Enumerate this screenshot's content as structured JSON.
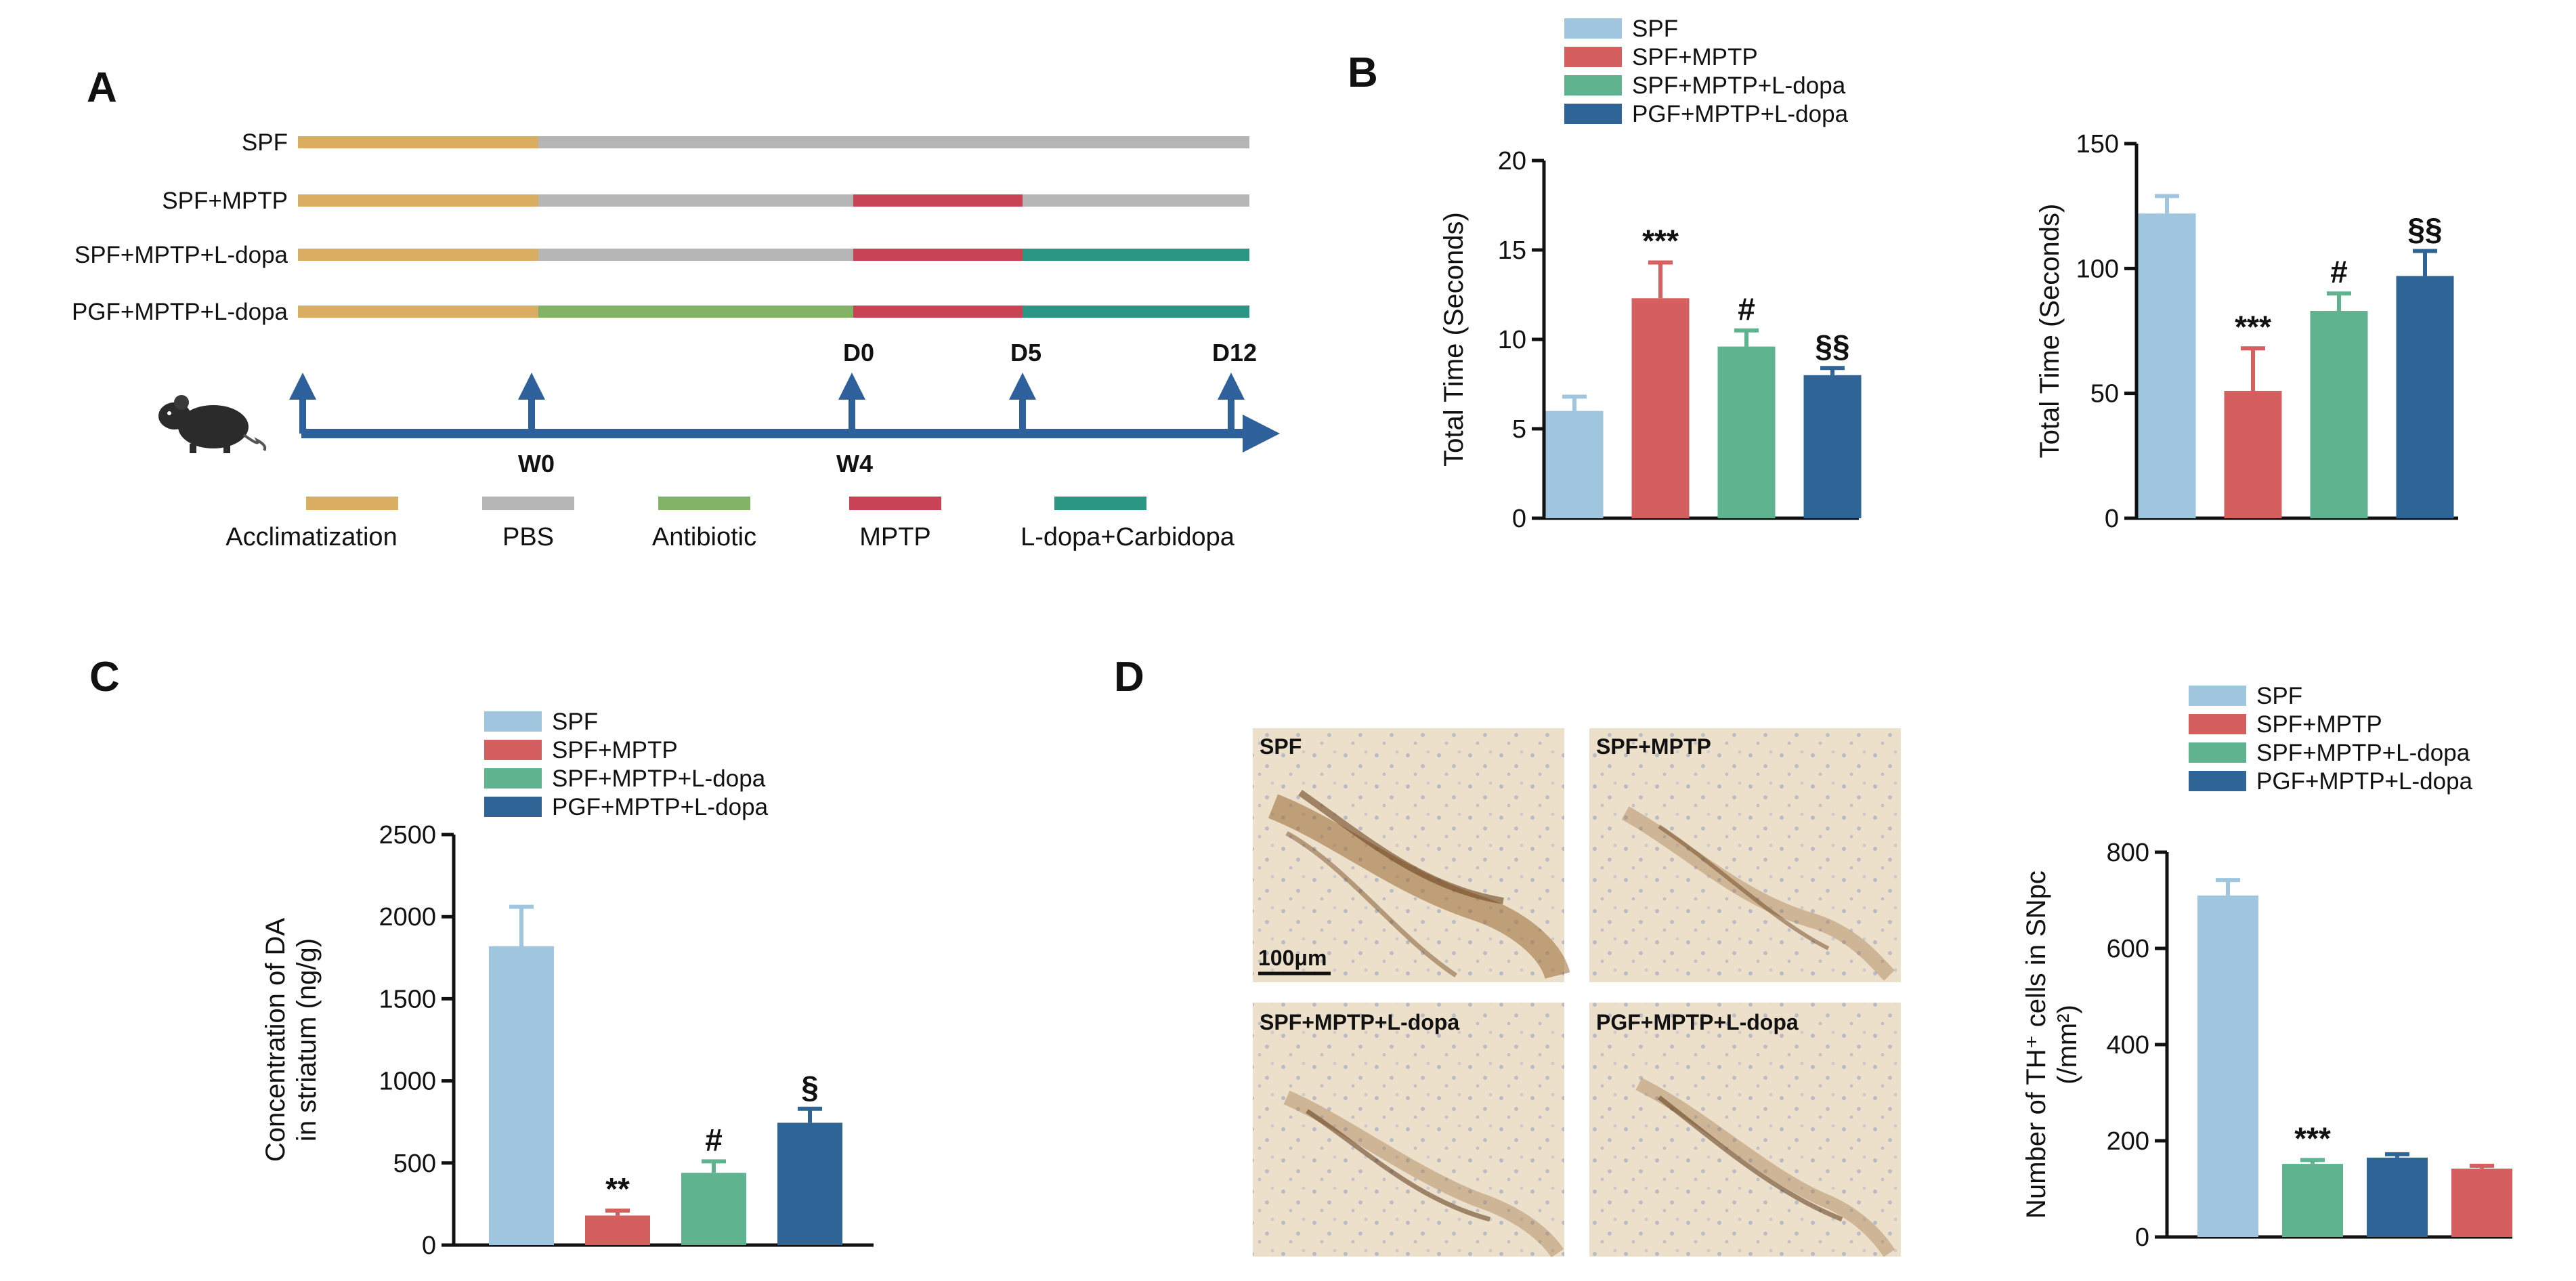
{
  "panels": {
    "A": {
      "letter": "A",
      "rows": [
        {
          "label": "SPF",
          "segments": [
            {
              "phase": "acclimatization",
              "from": "start",
              "to": "W0"
            },
            {
              "phase": "pbs",
              "from": "W0",
              "to": "D12"
            }
          ]
        },
        {
          "label": "SPF+MPTP",
          "segments": [
            {
              "phase": "acclimatization",
              "from": "start",
              "to": "W0"
            },
            {
              "phase": "pbs",
              "from": "W0",
              "to": "D0"
            },
            {
              "phase": "mptp",
              "from": "D0",
              "to": "D5"
            },
            {
              "phase": "pbs",
              "from": "D5",
              "to": "D12"
            }
          ]
        },
        {
          "label": "SPF+MPTP+L-dopa",
          "segments": [
            {
              "phase": "acclimatization",
              "from": "start",
              "to": "W0"
            },
            {
              "phase": "pbs",
              "from": "W0",
              "to": "D0"
            },
            {
              "phase": "mptp",
              "from": "D0",
              "to": "D5"
            },
            {
              "phase": "ldopa",
              "from": "D5",
              "to": "D12"
            }
          ]
        },
        {
          "label": "PGF+MPTP+L-dopa",
          "segments": [
            {
              "phase": "acclimatization",
              "from": "start",
              "to": "W0"
            },
            {
              "phase": "antibiotic",
              "from": "W0",
              "to": "D0"
            },
            {
              "phase": "mptp",
              "from": "D0",
              "to": "D5"
            },
            {
              "phase": "ldopa",
              "from": "D5",
              "to": "D12"
            }
          ]
        }
      ],
      "timeline": {
        "top_labels": [
          "D0",
          "D5",
          "D12"
        ],
        "bottom_labels": [
          "W0",
          "W4"
        ]
      },
      "phases": [
        {
          "key": "acclimatization",
          "label": "Acclimatization",
          "color": "#d9ae62"
        },
        {
          "key": "pbs",
          "label": "PBS",
          "color": "#b5b5b5"
        },
        {
          "key": "antibiotic",
          "label": "Antibiotic",
          "color": "#82b366"
        },
        {
          "key": "mptp",
          "label": "MPTP",
          "color": "#c84455"
        },
        {
          "key": "ldopa",
          "label": "L-dopa+Carbidopa",
          "color": "#2a9582"
        }
      ],
      "arrow_color": "#2e609b",
      "icon": "mouse-icon"
    },
    "B": {
      "letter": "B"
    },
    "C": {
      "letter": "C"
    },
    "D": {
      "letter": "D",
      "micrographs": [
        {
          "label": "SPF",
          "scale_bar": "100μm"
        },
        {
          "label": "SPF+MPTP"
        },
        {
          "label": "SPF+MPTP+L-dopa"
        },
        {
          "label": "PGF+MPTP+L-dopa"
        }
      ]
    }
  },
  "legend": {
    "entries": [
      {
        "name": "SPF",
        "color": "#9fc5df"
      },
      {
        "name": "SPF+MPTP",
        "color": "#d55f5f"
      },
      {
        "name": "SPF+MPTP+L-dopa",
        "color": "#5fb38f"
      },
      {
        "name": "PGF+MPTP+L-dopa",
        "color": "#2f6496"
      }
    ]
  },
  "chart_data": [
    {
      "id": "B-left",
      "type": "bar",
      "categories": [
        "SPF",
        "SPF+MPTP",
        "SPF+MPTP+L-dopa",
        "PGF+MPTP+L-dopa"
      ],
      "values": [
        6.0,
        12.3,
        9.6,
        8.0
      ],
      "errors": [
        0.8,
        2.0,
        0.9,
        0.4
      ],
      "colors": [
        "#9fc5df",
        "#d55f5f",
        "#5fb38f",
        "#2f6496"
      ],
      "annotations": [
        "",
        "***",
        "#",
        "§§"
      ],
      "ylabel": "Total Time (Seconds)",
      "ylim": [
        0,
        20
      ],
      "yticks": [
        0,
        5,
        10,
        15,
        20
      ],
      "legend": "top"
    },
    {
      "id": "B-right",
      "type": "bar",
      "categories": [
        "SPF",
        "SPF+MPTP",
        "SPF+MPTP+L-dopa",
        "PGF+MPTP+L-dopa"
      ],
      "values": [
        122,
        51,
        83,
        97
      ],
      "errors": [
        7,
        17,
        7,
        10
      ],
      "colors": [
        "#9fc5df",
        "#d55f5f",
        "#5fb38f",
        "#2f6496"
      ],
      "annotations": [
        "",
        "***",
        "#",
        "§§"
      ],
      "ylabel": "Total Time (Seconds)",
      "ylim": [
        0,
        150
      ],
      "yticks": [
        0,
        50,
        100,
        150
      ]
    },
    {
      "id": "C",
      "type": "bar",
      "categories": [
        "SPF",
        "SPF+MPTP",
        "SPF+MPTP+L-dopa",
        "PGF+MPTP+L-dopa"
      ],
      "values": [
        1820,
        180,
        440,
        745
      ],
      "errors": [
        240,
        30,
        70,
        85
      ],
      "colors": [
        "#9fc5df",
        "#d55f5f",
        "#5fb38f",
        "#2f6496"
      ],
      "annotations": [
        "",
        "**",
        "#",
        "§"
      ],
      "ylabel_lines": [
        "Concentration of DA",
        "in striatum (ng/g)"
      ],
      "ylim": [
        0,
        2500
      ],
      "yticks": [
        0,
        500,
        1000,
        1500,
        2000,
        2500
      ],
      "legend": "top"
    },
    {
      "id": "D",
      "type": "bar",
      "categories": [
        "SPF",
        "SPF+MPTP+L-dopa",
        "PGF+MPTP+L-dopa",
        "SPF+MPTP"
      ],
      "values": [
        710,
        152,
        165,
        142
      ],
      "errors": [
        32,
        8,
        7,
        6
      ],
      "colors": [
        "#9fc5df",
        "#5fb38f",
        "#2f6496",
        "#d55f5f"
      ],
      "annotations": [
        "",
        "***",
        "",
        ""
      ],
      "ylabel_lines": [
        "Number of TH⁺ cells in SNpc",
        "(/mm²)"
      ],
      "ylim": [
        0,
        800
      ],
      "yticks": [
        0,
        200,
        400,
        600,
        800
      ],
      "legend": "top"
    }
  ]
}
